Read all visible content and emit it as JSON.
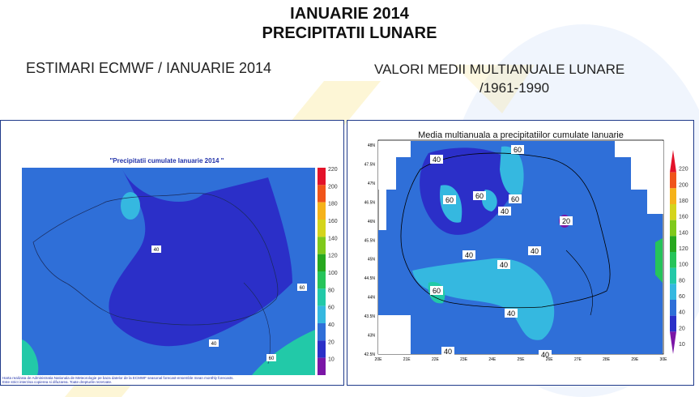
{
  "header": {
    "title": "IANUARIE 2014",
    "subtitle": "PRECIPITATII LUNARE"
  },
  "left_heading": "ESTIMARI ECMWF / IANUARIE 2014",
  "right_heading": {
    "line1": "VALORI MEDII MULTIANUALE LUNARE",
    "line2": "/1961-1990"
  },
  "left_map": {
    "title": "\"Precipitatii cumulate Ianuarie 2014 \"",
    "contour_labels": [
      "40",
      "40",
      "60",
      "60"
    ],
    "colorbar_ticks": [
      "220",
      "200",
      "180",
      "160",
      "140",
      "120",
      "100",
      "80",
      "60",
      "40",
      "20",
      "10"
    ],
    "footer_line1": "Harta realizata de Administratia Nationala de Meteorologie pe baza datelor de la ECMWF seasonal forecast-ensemble mean monthly forecasts.",
    "footer_line2": "Este strict interzisa copierea si difuzarea. Toate drepturile rezervate."
  },
  "right_map": {
    "title": "Media multianuala a precipitatiilor cumulate Ianuarie",
    "lat_ticks": [
      "48N",
      "47.5N",
      "47N",
      "46.5N",
      "46N",
      "45.5N",
      "45N",
      "44.5N",
      "44N",
      "43.5N",
      "43N",
      "42.5N"
    ],
    "lon_ticks": [
      "20E",
      "21E",
      "22E",
      "23E",
      "24E",
      "25E",
      "26E",
      "27E",
      "28E",
      "29E",
      "30E"
    ],
    "contour_labels": [
      "60",
      "40",
      "60",
      "60",
      "60",
      "40",
      "20",
      "40",
      "40",
      "40",
      "60",
      "40",
      "40",
      "40"
    ],
    "colorbar_ticks": [
      "220",
      "200",
      "180",
      "160",
      "140",
      "120",
      "100",
      "80",
      "60",
      "40",
      "20",
      "10"
    ]
  },
  "colors": {
    "c10": "#7b16a6",
    "c20": "#2b2fc8",
    "c40": "#2f6fd8",
    "c60": "#35b8e0",
    "c80": "#22c9a8",
    "c100": "#26c45a",
    "c120": "#27a81f",
    "c140": "#7fc91c",
    "c160": "#d4d41c",
    "c180": "#f5b21a",
    "c200": "#f0541a",
    "c220": "#e3122a"
  }
}
